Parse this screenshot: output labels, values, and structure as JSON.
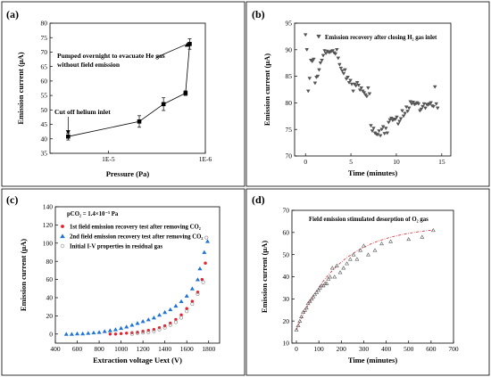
{
  "panels": {
    "a": {
      "label": "(a)"
    },
    "b": {
      "label": "(b)"
    },
    "c": {
      "label": "(c)"
    },
    "d": {
      "label": "(d)"
    }
  },
  "chart_data": [
    {
      "id": "a",
      "type": "line",
      "xlabel": "Pressure (Pa)",
      "ylabel": "Emission current (μA)",
      "x_scale": "log-reversed",
      "xlim": [
        4e-05,
        1e-06
      ],
      "xticks": [
        {
          "value": 1e-05,
          "label": "1E-5"
        },
        {
          "value": 1e-06,
          "label": "1E-6"
        }
      ],
      "ylim": [
        35,
        80
      ],
      "yticks": [
        35,
        40,
        45,
        50,
        55,
        60,
        65,
        70,
        75,
        80
      ],
      "points": [
        {
          "x": 2.6e-05,
          "y": 40.8,
          "err": 1.2
        },
        {
          "x": 4.8e-06,
          "y": 46.0,
          "err": 2.0
        },
        {
          "x": 2.7e-06,
          "y": 52.0,
          "err": 2.2
        },
        {
          "x": 1.6e-06,
          "y": 55.8,
          "err": 0.8
        },
        {
          "x": 1.45e-06,
          "y": 72.8,
          "err": 1.8
        }
      ],
      "annotations": [
        {
          "text": "Pumped overnight to evacuate He gas",
          "line2": "without field emission"
        },
        {
          "text": "Cut off helium inlet"
        }
      ]
    },
    {
      "id": "b",
      "type": "scatter",
      "xlabel": "Time (minutes)",
      "ylabel": "Emission current (μA)",
      "xlim": [
        -1.2,
        16
      ],
      "xticks": [
        0,
        5,
        10,
        15
      ],
      "ylim": [
        70,
        95
      ],
      "yticks": [
        70,
        75,
        80,
        85,
        90,
        95
      ],
      "legend": "Emission recovery after closing H₂ gas inlet",
      "marker": "triangle-down",
      "points": [
        [
          0.0,
          92.8
        ],
        [
          0.15,
          90.0
        ],
        [
          0.3,
          82.2
        ],
        [
          0.45,
          84.6
        ],
        [
          0.6,
          88.0
        ],
        [
          0.75,
          87.8
        ],
        [
          0.9,
          88.2
        ],
        [
          1.05,
          83.7
        ],
        [
          1.2,
          84.8
        ],
        [
          1.35,
          85.0
        ],
        [
          1.5,
          86.2
        ],
        [
          1.65,
          87.5
        ],
        [
          1.8,
          88.0
        ],
        [
          1.95,
          88.9
        ],
        [
          2.1,
          89.8
        ],
        [
          2.25,
          89.3
        ],
        [
          2.4,
          89.7
        ],
        [
          2.55,
          89.5
        ],
        [
          2.7,
          89.5
        ],
        [
          2.85,
          89.7
        ],
        [
          3.0,
          89.8
        ],
        [
          3.15,
          89.4
        ],
        [
          3.3,
          89.2
        ],
        [
          3.45,
          90.0
        ],
        [
          3.6,
          88.4
        ],
        [
          3.75,
          87.2
        ],
        [
          3.9,
          86.5
        ],
        [
          4.05,
          86.0
        ],
        [
          4.2,
          85.5
        ],
        [
          4.35,
          86.2
        ],
        [
          4.5,
          84.5
        ],
        [
          4.65,
          84.8
        ],
        [
          4.8,
          83.8
        ],
        [
          4.95,
          84.2
        ],
        [
          5.1,
          83.5
        ],
        [
          5.25,
          82.2
        ],
        [
          5.4,
          83.5
        ],
        [
          5.55,
          83.2
        ],
        [
          5.7,
          83.8
        ],
        [
          5.85,
          83.3
        ],
        [
          6.0,
          82.4
        ],
        [
          6.15,
          82.8
        ],
        [
          6.3,
          82.2
        ],
        [
          6.45,
          81.9
        ],
        [
          6.6,
          81.5
        ],
        [
          6.75,
          81.2
        ],
        [
          6.9,
          82.8
        ],
        [
          7.05,
          81.7
        ],
        [
          7.2,
          75.7
        ],
        [
          7.35,
          74.7
        ],
        [
          7.5,
          75.2
        ],
        [
          7.65,
          74.3
        ],
        [
          7.8,
          74.1
        ],
        [
          7.95,
          74.0
        ],
        [
          8.1,
          74.7
        ],
        [
          8.25,
          73.8
        ],
        [
          8.4,
          75.0
        ],
        [
          8.55,
          75.5
        ],
        [
          8.7,
          74.2
        ],
        [
          8.85,
          75.2
        ],
        [
          9.0,
          74.3
        ],
        [
          9.15,
          76.3
        ],
        [
          9.3,
          76.8
        ],
        [
          9.45,
          77.1
        ],
        [
          9.6,
          76.7
        ],
        [
          9.75,
          76.9
        ],
        [
          9.9,
          76.9
        ],
        [
          10.05,
          77.3
        ],
        [
          10.2,
          76.0
        ],
        [
          10.35,
          76.5
        ],
        [
          10.5,
          77.0
        ],
        [
          10.65,
          78.5
        ],
        [
          10.8,
          77.5
        ],
        [
          10.95,
          78.0
        ],
        [
          11.1,
          79.2
        ],
        [
          11.25,
          78.4
        ],
        [
          11.4,
          79.0
        ],
        [
          11.55,
          80.2
        ],
        [
          11.7,
          79.8
        ],
        [
          11.85,
          80.1
        ],
        [
          12.0,
          79.7
        ],
        [
          12.15,
          79.8
        ],
        [
          12.3,
          80.0
        ],
        [
          12.45,
          79.8
        ],
        [
          12.6,
          78.5
        ],
        [
          12.75,
          78.8
        ],
        [
          12.9,
          79.3
        ],
        [
          13.05,
          79.8
        ],
        [
          13.2,
          79.0
        ],
        [
          13.35,
          79.7
        ],
        [
          13.5,
          79.6
        ],
        [
          13.65,
          79.8
        ],
        [
          13.8,
          80.0
        ],
        [
          13.95,
          79.4
        ],
        [
          14.1,
          79.3
        ],
        [
          14.25,
          83.0
        ],
        [
          14.4,
          79.8
        ],
        [
          14.55,
          79.0
        ]
      ]
    },
    {
      "id": "c",
      "type": "scatter",
      "xlabel": "Extraction voltage Uext (V)",
      "ylabel": "Emission current (μA)",
      "xlim": [
        400,
        1900
      ],
      "xticks": [
        400,
        600,
        800,
        1000,
        1200,
        1400,
        1600,
        1800
      ],
      "ylim": [
        -10,
        140
      ],
      "yticks": [
        0,
        20,
        40,
        60,
        80,
        100,
        120,
        140
      ],
      "legend_title": "pCO₂ = 1.4×10⁻⁵ Pa",
      "series": [
        {
          "name": "1st field emission recovery test after removing CO₂",
          "color": "#e8202a",
          "marker": "circle",
          "points": [
            [
              900,
              0
            ],
            [
              950,
              0
            ],
            [
              1000,
              0.5
            ],
            [
              1050,
              1
            ],
            [
              1100,
              1.5
            ],
            [
              1150,
              2
            ],
            [
              1200,
              3
            ],
            [
              1250,
              4
            ],
            [
              1300,
              5
            ],
            [
              1350,
              7
            ],
            [
              1400,
              9
            ],
            [
              1450,
              12
            ],
            [
              1500,
              16
            ],
            [
              1550,
              21
            ],
            [
              1600,
              28
            ],
            [
              1650,
              36
            ],
            [
              1700,
              46
            ],
            [
              1740,
              60
            ],
            [
              1770,
              78
            ]
          ]
        },
        {
          "name": "2nd field emission recovery test after removing CO₂",
          "color": "#1e74d6",
          "marker": "triangle-up",
          "points": [
            [
              500,
              0
            ],
            [
              550,
              0
            ],
            [
              600,
              0.5
            ],
            [
              650,
              0.5
            ],
            [
              700,
              1
            ],
            [
              750,
              1.5
            ],
            [
              800,
              2
            ],
            [
              850,
              3
            ],
            [
              900,
              4
            ],
            [
              950,
              5
            ],
            [
              1000,
              6.5
            ],
            [
              1050,
              8
            ],
            [
              1100,
              10
            ],
            [
              1150,
              12
            ],
            [
              1200,
              14
            ],
            [
              1250,
              16
            ],
            [
              1300,
              18
            ],
            [
              1350,
              21
            ],
            [
              1400,
              24
            ],
            [
              1450,
              27
            ],
            [
              1500,
              31
            ],
            [
              1550,
              36
            ],
            [
              1600,
              42
            ],
            [
              1650,
              50
            ],
            [
              1700,
              60
            ],
            [
              1720,
              72
            ],
            [
              1760,
              90
            ],
            [
              1790,
              102
            ]
          ]
        },
        {
          "name": "Initial I-V properties in residual gas",
          "color": "#888888",
          "marker": "open-circle",
          "points": [
            [
              1100,
              0
            ],
            [
              1150,
              1
            ],
            [
              1200,
              1.5
            ],
            [
              1250,
              2
            ],
            [
              1300,
              3
            ],
            [
              1350,
              5
            ],
            [
              1400,
              7
            ],
            [
              1450,
              10
            ],
            [
              1500,
              13
            ],
            [
              1550,
              18
            ],
            [
              1600,
              25
            ],
            [
              1650,
              33
            ],
            [
              1700,
              44
            ],
            [
              1750,
              57
            ],
            [
              1780,
              106
            ]
          ]
        }
      ]
    },
    {
      "id": "d",
      "type": "scatter",
      "xlabel": "Time (minutes)",
      "ylabel": "Emission current (μA)",
      "xlim": [
        -20,
        700
      ],
      "xticks": [
        0,
        100,
        200,
        300,
        400,
        500,
        600,
        700
      ],
      "ylim": [
        10,
        70
      ],
      "yticks": [
        10,
        20,
        30,
        40,
        50,
        60,
        70
      ],
      "legend": "Field emission stimulated desorption of O₂ gas",
      "marker": "open-triangle",
      "points": [
        [
          0,
          16
        ],
        [
          8,
          18
        ],
        [
          15,
          20
        ],
        [
          22,
          22
        ],
        [
          30,
          24
        ],
        [
          38,
          25
        ],
        [
          45,
          26
        ],
        [
          52,
          28
        ],
        [
          60,
          29
        ],
        [
          68,
          30
        ],
        [
          75,
          31
        ],
        [
          82,
          32
        ],
        [
          90,
          33
        ],
        [
          98,
          34
        ],
        [
          105,
          35
        ],
        [
          112,
          36
        ],
        [
          120,
          36
        ],
        [
          128,
          37
        ],
        [
          135,
          37
        ],
        [
          142,
          39
        ],
        [
          150,
          40
        ],
        [
          160,
          44
        ],
        [
          170,
          40
        ],
        [
          180,
          45
        ],
        [
          195,
          42
        ],
        [
          210,
          44
        ],
        [
          225,
          46
        ],
        [
          240,
          48
        ],
        [
          255,
          50
        ],
        [
          270,
          48
        ],
        [
          285,
          52
        ],
        [
          300,
          54
        ],
        [
          320,
          50
        ],
        [
          350,
          52
        ],
        [
          380,
          55
        ],
        [
          420,
          56
        ],
        [
          500,
          57
        ],
        [
          560,
          58
        ],
        [
          610,
          61
        ]
      ],
      "fit": "exponential-saturation"
    }
  ]
}
